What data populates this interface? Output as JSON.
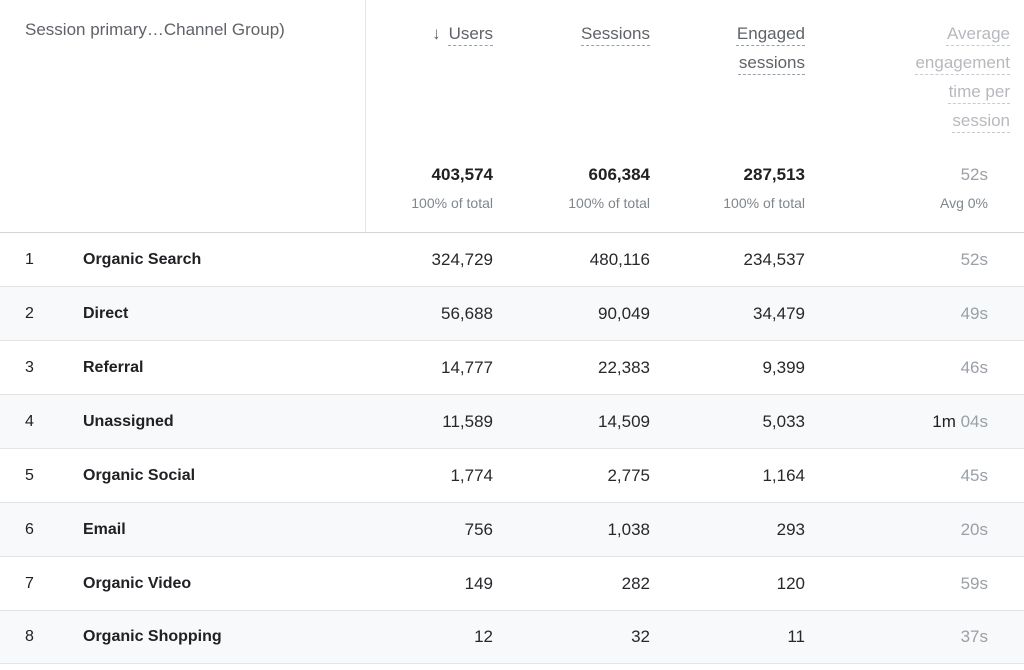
{
  "header": {
    "dimension": "Session primary…Channel Group)",
    "sort_icon": "↓",
    "columns": {
      "users": "Users",
      "sessions": "Sessions",
      "engaged": "Engaged sessions",
      "avg": "Average engagement time per session"
    }
  },
  "totals": {
    "users": "403,574",
    "users_sub": "100% of total",
    "sessions": "606,384",
    "sessions_sub": "100% of total",
    "engaged": "287,513",
    "engaged_sub": "100% of total",
    "avg": "52s",
    "avg_sub": "Avg 0%"
  },
  "rows": [
    {
      "index": "1",
      "channel": "Organic Search",
      "users": "324,729",
      "sessions": "480,116",
      "engaged": "234,537",
      "avg_prefix": "",
      "avg": "52s"
    },
    {
      "index": "2",
      "channel": "Direct",
      "users": "56,688",
      "sessions": "90,049",
      "engaged": "34,479",
      "avg_prefix": "",
      "avg": "49s"
    },
    {
      "index": "3",
      "channel": "Referral",
      "users": "14,777",
      "sessions": "22,383",
      "engaged": "9,399",
      "avg_prefix": "",
      "avg": "46s"
    },
    {
      "index": "4",
      "channel": "Unassigned",
      "users": "11,589",
      "sessions": "14,509",
      "engaged": "5,033",
      "avg_prefix": "1m ",
      "avg": "04s"
    },
    {
      "index": "5",
      "channel": "Organic Social",
      "users": "1,774",
      "sessions": "2,775",
      "engaged": "1,164",
      "avg_prefix": "",
      "avg": "45s"
    },
    {
      "index": "6",
      "channel": "Email",
      "users": "756",
      "sessions": "1,038",
      "engaged": "293",
      "avg_prefix": "",
      "avg": "20s"
    },
    {
      "index": "7",
      "channel": "Organic Video",
      "users": "149",
      "sessions": "282",
      "engaged": "120",
      "avg_prefix": "",
      "avg": "59s"
    },
    {
      "index": "8",
      "channel": "Organic Shopping",
      "users": "12",
      "sessions": "32",
      "engaged": "11",
      "avg_prefix": "",
      "avg": "37s"
    }
  ]
}
